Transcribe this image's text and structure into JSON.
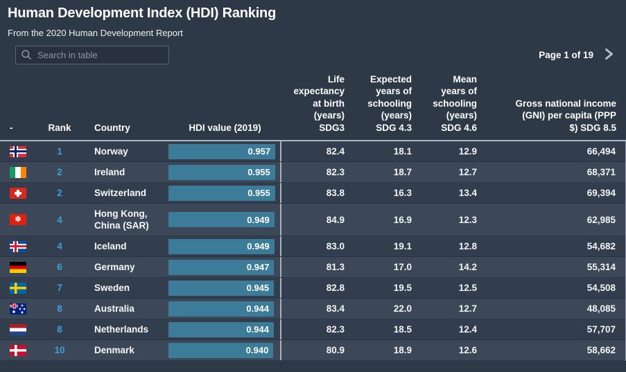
{
  "page": {
    "title": "Human Development Index (HDI) Ranking",
    "subtitle": "From the 2020 Human Development Report",
    "search": {
      "placeholder": "Search in table",
      "icon": "search-icon"
    },
    "pagination": {
      "label": "Page 1 of 19",
      "next_icon": "chevron-right-icon"
    }
  },
  "icons": {
    "search": "magnifier-glyph",
    "next_page": "chevron-right",
    "hongkong_flower": "✽"
  },
  "colors": {
    "page_bg": "#2d3946",
    "row_dark": "#323e4e",
    "row_light": "#3c4857",
    "rank_accent": "#38a1d8",
    "bar_fill": "#3c7c98",
    "header_underline": "#aeb8c2"
  },
  "table": {
    "columns": [
      {
        "key": "flag",
        "label": "-"
      },
      {
        "key": "rank",
        "label": "Rank"
      },
      {
        "key": "country",
        "label": "Country"
      },
      {
        "key": "hdi",
        "label": "HDI value (2019)"
      },
      {
        "key": "life",
        "label": "Life\nexpectancy\nat birth\n(years)\nSDG3"
      },
      {
        "key": "expected",
        "label": "Expected\nyears of\nschooling\n(years)\nSDG 4.3"
      },
      {
        "key": "mean",
        "label": "Mean\nyears of\nschooling\n(years)\nSDG 4.6"
      },
      {
        "key": "gni",
        "label": "Gross national income\n(GNI) per capita (PPP\n$) SDG 8.5"
      }
    ],
    "rows": [
      {
        "flag": "norway",
        "rank": "1",
        "country": "Norway",
        "hdi": "0.957",
        "life": "82.4",
        "expected": "18.1",
        "mean": "12.9",
        "gni": "66,494"
      },
      {
        "flag": "ireland",
        "rank": "2",
        "country": "Ireland",
        "hdi": "0.955",
        "life": "82.3",
        "expected": "18.7",
        "mean": "12.7",
        "gni": "68,371"
      },
      {
        "flag": "switzerland",
        "rank": "2",
        "country": "Switzerland",
        "hdi": "0.955",
        "life": "83.8",
        "expected": "16.3",
        "mean": "13.4",
        "gni": "69,394"
      },
      {
        "flag": "hongkong",
        "rank": "4",
        "country": "Hong Kong, China (SAR)",
        "hdi": "0.949",
        "life": "84.9",
        "expected": "16.9",
        "mean": "12.3",
        "gni": "62,985"
      },
      {
        "flag": "iceland",
        "rank": "4",
        "country": "Iceland",
        "hdi": "0.949",
        "life": "83.0",
        "expected": "19.1",
        "mean": "12.8",
        "gni": "54,682"
      },
      {
        "flag": "germany",
        "rank": "6",
        "country": "Germany",
        "hdi": "0.947",
        "life": "81.3",
        "expected": "17.0",
        "mean": "14.2",
        "gni": "55,314"
      },
      {
        "flag": "sweden",
        "rank": "7",
        "country": "Sweden",
        "hdi": "0.945",
        "life": "82.8",
        "expected": "19.5",
        "mean": "12.5",
        "gni": "54,508"
      },
      {
        "flag": "australia",
        "rank": "8",
        "country": "Australia",
        "hdi": "0.944",
        "life": "83.4",
        "expected": "22.0",
        "mean": "12.7",
        "gni": "48,085"
      },
      {
        "flag": "netherlands",
        "rank": "8",
        "country": "Netherlands",
        "hdi": "0.944",
        "life": "82.3",
        "expected": "18.5",
        "mean": "12.4",
        "gni": "57,707"
      },
      {
        "flag": "denmark",
        "rank": "10",
        "country": "Denmark",
        "hdi": "0.940",
        "life": "80.9",
        "expected": "18.9",
        "mean": "12.6",
        "gni": "58,662"
      }
    ]
  }
}
